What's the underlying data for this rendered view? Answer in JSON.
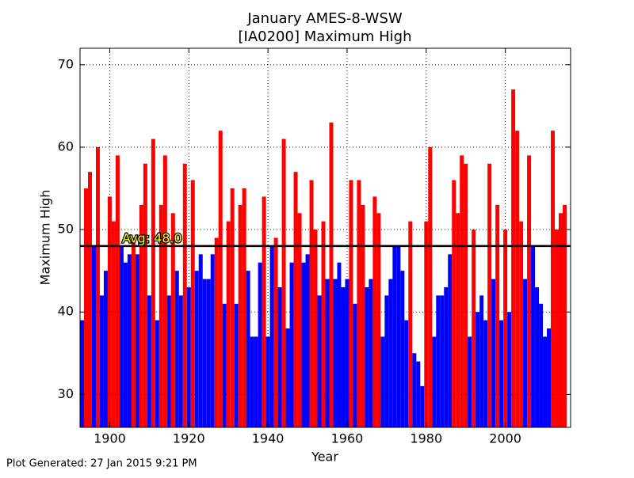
{
  "chart_data": {
    "type": "bar",
    "title": "January AMES-8-WSW",
    "subtitle": "[IA0200] Maximum High",
    "xlabel": "Year",
    "ylabel": "Maximum High",
    "footer": "Plot Generated: 27 Jan 2015 9:21 PM",
    "average": {
      "value": 48,
      "label": "Avg: 48.0"
    },
    "above_color": "#ff0000",
    "below_color": "#0000ff",
    "grid": true,
    "xlim": [
      1892.5,
      2016.5
    ],
    "ylim": [
      26,
      72
    ],
    "xticks": [
      1900,
      1920,
      1940,
      1960,
      1980,
      2000
    ],
    "yticks": [
      30,
      40,
      50,
      60,
      70
    ],
    "x": [
      1893,
      1894,
      1895,
      1896,
      1897,
      1898,
      1899,
      1900,
      1901,
      1902,
      1903,
      1904,
      1905,
      1906,
      1907,
      1908,
      1909,
      1910,
      1911,
      1912,
      1913,
      1914,
      1915,
      1916,
      1917,
      1918,
      1919,
      1920,
      1921,
      1922,
      1923,
      1924,
      1925,
      1926,
      1927,
      1928,
      1929,
      1930,
      1931,
      1932,
      1933,
      1934,
      1935,
      1936,
      1937,
      1938,
      1939,
      1940,
      1941,
      1942,
      1943,
      1944,
      1945,
      1946,
      1947,
      1948,
      1949,
      1950,
      1951,
      1952,
      1953,
      1954,
      1955,
      1956,
      1957,
      1958,
      1959,
      1960,
      1961,
      1962,
      1963,
      1964,
      1965,
      1966,
      1967,
      1968,
      1969,
      1970,
      1971,
      1972,
      1973,
      1974,
      1975,
      1976,
      1977,
      1978,
      1979,
      1980,
      1981,
      1982,
      1983,
      1984,
      1985,
      1986,
      1987,
      1988,
      1989,
      1990,
      1991,
      1992,
      1993,
      1994,
      1995,
      1996,
      1997,
      1998,
      1999,
      2000,
      2001,
      2002,
      2003,
      2004,
      2005,
      2006,
      2007,
      2008,
      2009,
      2010,
      2011,
      2012,
      2013,
      2014,
      2015
    ],
    "values": [
      39,
      55,
      57,
      48,
      60,
      42,
      45,
      54,
      51,
      59,
      48,
      46,
      47,
      49,
      47,
      53,
      58,
      42,
      61,
      39,
      53,
      59,
      42,
      52,
      45,
      42,
      58,
      43,
      56,
      45,
      47,
      44,
      44,
      47,
      49,
      62,
      41,
      51,
      55,
      41,
      53,
      55,
      45,
      37,
      37,
      46,
      54,
      37,
      48,
      49,
      43,
      61,
      38,
      46,
      57,
      52,
      46,
      47,
      56,
      50,
      42,
      51,
      44,
      63,
      44,
      46,
      43,
      44,
      56,
      41,
      56,
      53,
      43,
      44,
      54,
      52,
      37,
      42,
      44,
      48,
      48,
      45,
      39,
      51,
      35,
      34,
      31,
      51,
      60,
      37,
      42,
      42,
      43,
      47,
      56,
      52,
      59,
      58,
      37,
      50,
      40,
      42,
      39,
      58,
      44,
      53,
      39,
      50,
      40,
      67,
      62,
      51,
      44,
      59,
      48,
      43,
      41,
      37,
      38,
      62,
      50,
      52,
      53
    ]
  }
}
